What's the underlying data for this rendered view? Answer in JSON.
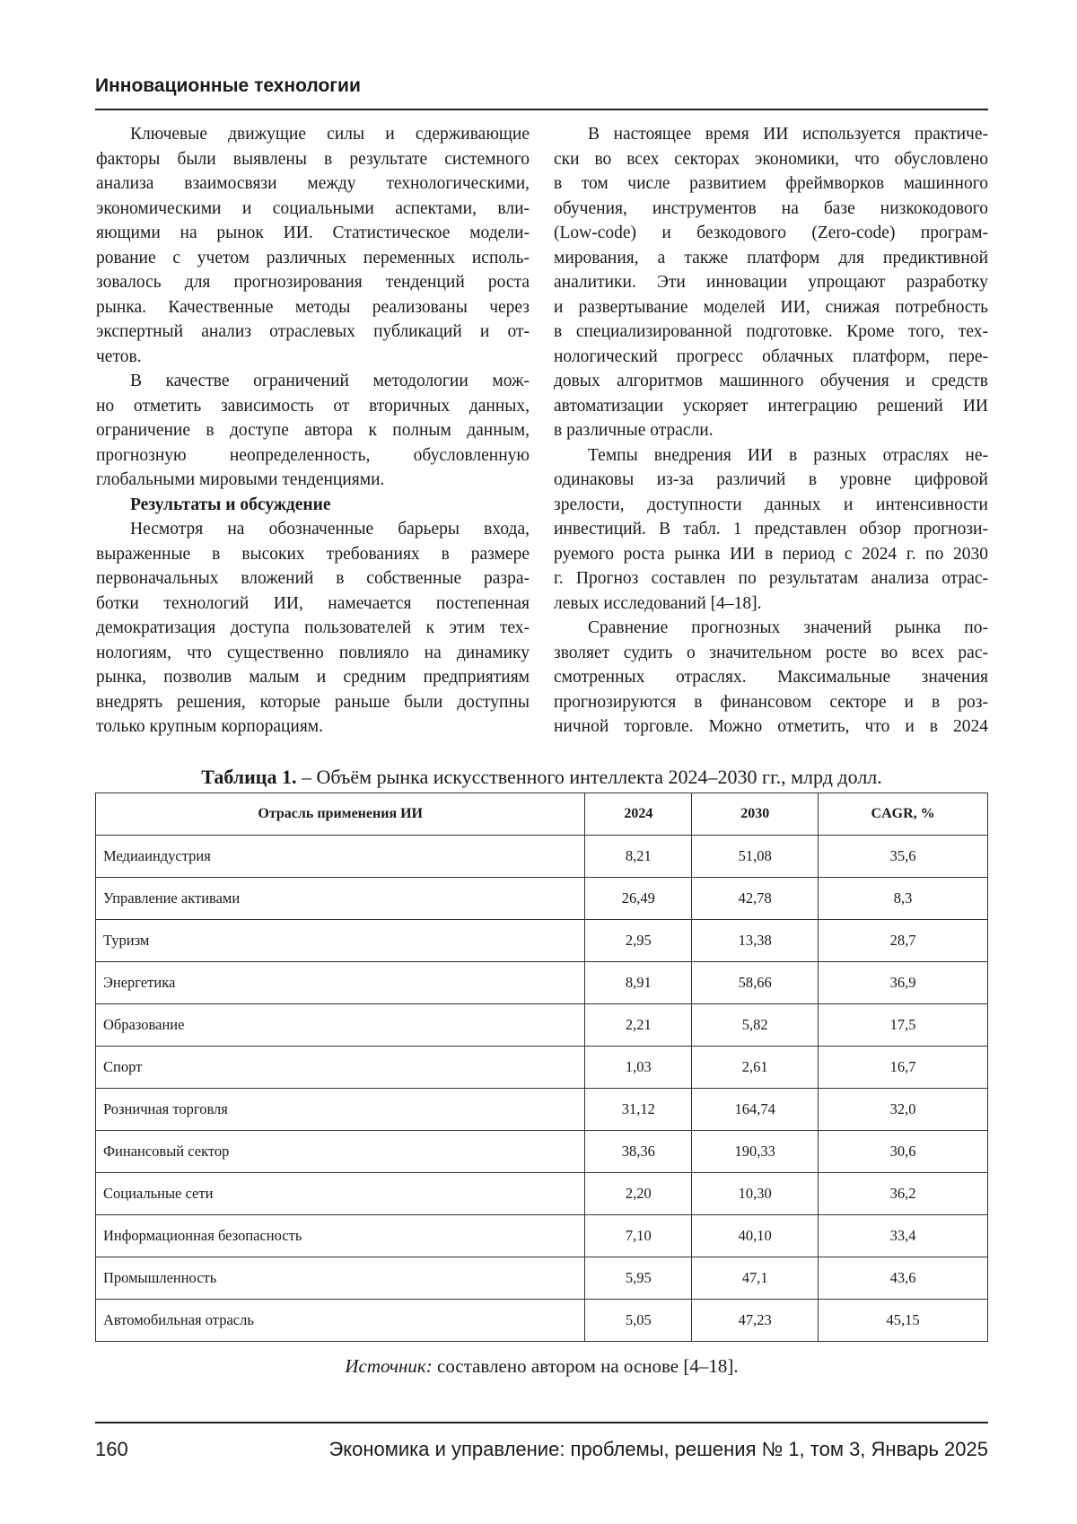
{
  "header": {
    "section": "Инновационные технологии"
  },
  "left_column": [
    {
      "type": "p",
      "lines": [
        "Ключевые движущие силы и сдерживающие",
        "факторы были выявлены в результате системного",
        "анализа взаимосвязи между технологическими,",
        "экономическими и социальными аспектами, вли-",
        "яющими на рынок ИИ. Статистическое модели-",
        "рование с учетом различных переменных исполь-",
        "зовалось для прогнозирования тенденций роста",
        "рынка. Качественные методы реализованы через",
        "экспертный анализ отраслевых публикаций и от-",
        "четов."
      ]
    },
    {
      "type": "p",
      "lines": [
        "В качестве ограничений методологии мож-",
        "но отметить зависимость от вторичных данных,",
        "ограничение в доступе автора к полным данным,",
        "прогнозную неопределенность, обусловленную",
        "глобальными мировыми тенденциями."
      ]
    },
    {
      "type": "heading",
      "lines": [
        "Результаты и обсуждение"
      ]
    },
    {
      "type": "p",
      "lines": [
        "Несмотря на обозначенные барьеры входа,",
        "выраженные в высоких требованиях в размере",
        "первоначальных вложений в собственные разра-",
        "ботки технологий ИИ, намечается постепенная",
        "демократизация доступа пользователей к этим тех-",
        "нологиям, что существенно повлияло на динамику",
        "рынка, позволив малым и средним предприятиям",
        "внедрять решения, которые раньше были доступны",
        "только крупным корпорациям."
      ]
    }
  ],
  "right_column": [
    {
      "type": "p",
      "lines": [
        "В настоящее время ИИ используется практиче-",
        "ски во всех секторах экономики, что обусловлено",
        "в том числе развитием фреймворков машинного",
        "обучения, инструментов на базе низкокодового",
        "(Low-code) и безкодового (Zero-code) програм-",
        "мирования, а также платформ для предиктивной",
        "аналитики. Эти инновации упрощают разработку",
        "и развертывание моделей ИИ, снижая потребность",
        "в специализированной подготовке. Кроме того, тех-",
        "нологический прогресс облачных платформ, пере-",
        "довых алгоритмов машинного обучения и средств",
        "автоматизации ускоряет интеграцию решений ИИ",
        "в различные отрасли."
      ]
    },
    {
      "type": "p",
      "lines": [
        "Темпы внедрения ИИ в разных отраслях не-",
        "одинаковы из-за различий в уровне цифровой",
        "зрелости, доступности данных и интенсивности",
        "инвестиций. В табл. 1 представлен обзор прогнози-",
        "руемого роста рынка ИИ в период с 2024 г. по 2030",
        "г. Прогноз составлен по результатам анализа отрас-",
        "левых исследований [4–18]."
      ]
    },
    {
      "type": "p",
      "continues": true,
      "lines": [
        "Сравнение прогнозных значений рынка по-",
        "зволяет судить о значительном росте во всех рас-",
        "смотренных отраслях. Максимальные значения",
        "прогнозируются в финансовом секторе и в роз-",
        "ничной торговле. Можно отметить, что и в 2024"
      ]
    }
  ],
  "table": {
    "title_label": "Таблица 1.",
    "title_text": " – Объём рынка искусственного интеллекта 2024–2030 гг., млрд долл.",
    "headers": [
      "Отрасль применения ИИ",
      "2024",
      "2030",
      "CAGR, %"
    ],
    "rows": [
      [
        "Медиаиндустрия",
        "8,21",
        "51,08",
        "35,6"
      ],
      [
        "Управление активами",
        "26,49",
        "42,78",
        "8,3"
      ],
      [
        "Туризм",
        "2,95",
        "13,38",
        "28,7"
      ],
      [
        "Энергетика",
        "8,91",
        "58,66",
        "36,9"
      ],
      [
        "Образование",
        "2,21",
        "5,82",
        "17,5"
      ],
      [
        "Спорт",
        "1,03",
        "2,61",
        "16,7"
      ],
      [
        "Розничная торговля",
        "31,12",
        "164,74",
        "32,0"
      ],
      [
        "Финансовый сектор",
        "38,36",
        "190,33",
        "30,6"
      ],
      [
        "Социальные сети",
        "2,20",
        "10,30",
        "36,2"
      ],
      [
        "Информационная безопасность",
        "7,10",
        "40,10",
        "33,4"
      ],
      [
        "Промышленность",
        "5,95",
        "47,1",
        "43,6"
      ],
      [
        "Автомобильная отрасль",
        "5,05",
        "47,23",
        "45,15"
      ]
    ],
    "source_label": "Источник:",
    "source_text": " составлено автором на основе [4–18]."
  },
  "footer": {
    "page_number": "160",
    "journal": "Экономика и управление: проблемы, решения № 1, том 3, Январь 2025"
  }
}
